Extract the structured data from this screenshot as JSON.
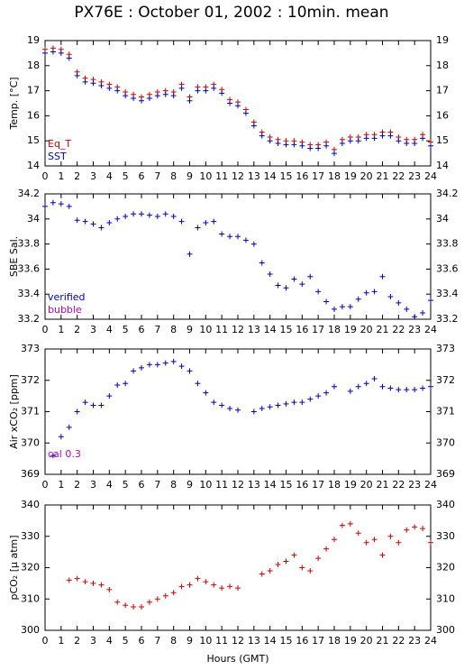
{
  "title": "PX76E : October 01, 2002 : 10min. mean",
  "chart_data": [
    {
      "type": "scatter",
      "ylabel": "Temp. [°C]",
      "xlim": [
        0,
        24
      ],
      "xticks": [
        0,
        1,
        2,
        3,
        4,
        5,
        6,
        7,
        8,
        9,
        10,
        11,
        12,
        13,
        14,
        15,
        16,
        17,
        18,
        19,
        20,
        21,
        22,
        23,
        24
      ],
      "ylim": [
        14,
        19
      ],
      "yticks": [
        14,
        15,
        16,
        17,
        18,
        19
      ],
      "x": [
        0,
        0.5,
        1,
        1.5,
        2,
        2.5,
        3,
        3.5,
        4,
        4.5,
        5,
        5.5,
        6,
        6.5,
        7,
        7.5,
        8,
        8.5,
        9,
        9.5,
        10,
        10.5,
        11,
        11.5,
        12,
        12.5,
        13,
        13.5,
        14,
        14.5,
        15,
        15.5,
        16,
        16.5,
        17,
        17.5,
        18,
        18.5,
        19,
        19.5,
        20,
        20.5,
        21,
        21.5,
        22,
        22.5,
        23,
        23.5,
        24
      ],
      "series": [
        {
          "name": "Eq_T",
          "color": "#d00000",
          "values": [
            18.65,
            18.7,
            18.65,
            18.45,
            17.75,
            17.5,
            17.45,
            17.35,
            17.25,
            17.15,
            16.95,
            16.85,
            16.75,
            16.85,
            16.95,
            17.0,
            16.95,
            17.25,
            16.75,
            17.15,
            17.15,
            17.25,
            17.05,
            16.65,
            16.55,
            16.25,
            15.75,
            15.35,
            15.15,
            15.05,
            15.0,
            15.0,
            14.95,
            14.85,
            14.85,
            14.95,
            14.65,
            15.05,
            15.15,
            15.15,
            15.25,
            15.25,
            15.35,
            15.35,
            15.15,
            15.05,
            15.05,
            15.25,
            14.95
          ]
        },
        {
          "name": "SST",
          "color": "#0000c0",
          "values": [
            18.5,
            18.55,
            18.5,
            18.3,
            17.6,
            17.35,
            17.3,
            17.2,
            17.1,
            17.0,
            16.8,
            16.7,
            16.6,
            16.7,
            16.8,
            16.85,
            16.8,
            17.1,
            16.6,
            17.0,
            17.0,
            17.1,
            16.9,
            16.5,
            16.4,
            16.1,
            15.6,
            15.2,
            15.0,
            14.9,
            14.85,
            14.85,
            14.8,
            14.7,
            14.7,
            14.8,
            14.5,
            14.9,
            15.0,
            15.0,
            15.1,
            15.1,
            15.2,
            15.2,
            15.0,
            14.9,
            14.9,
            15.1,
            14.8
          ]
        }
      ]
    },
    {
      "type": "scatter",
      "ylabel": "SBE Sal.",
      "xlim": [
        0,
        24
      ],
      "xticks": [
        0,
        1,
        2,
        3,
        4,
        5,
        6,
        7,
        8,
        9,
        10,
        11,
        12,
        13,
        14,
        15,
        16,
        17,
        18,
        19,
        20,
        21,
        22,
        23,
        24
      ],
      "ylim": [
        33.2,
        34.2
      ],
      "yticks": [
        33.2,
        33.4,
        33.6,
        33.8,
        34,
        34.2
      ],
      "x": [
        0,
        0.5,
        1,
        1.5,
        2,
        2.5,
        3,
        3.5,
        4,
        4.5,
        5,
        5.5,
        6,
        6.5,
        7,
        7.5,
        8,
        8.5,
        9,
        9.5,
        10,
        10.5,
        11,
        11.5,
        12,
        12.5,
        13,
        13.5,
        14,
        14.5,
        15,
        15.5,
        16,
        16.5,
        17,
        17.5,
        18,
        18.5,
        19,
        19.5,
        20,
        20.5,
        21,
        21.5,
        22,
        22.5,
        23,
        23.5,
        24
      ],
      "series": [
        {
          "name": "verified",
          "color": "#0000c0",
          "values": [
            34.1,
            34.13,
            34.12,
            34.1,
            33.99,
            33.98,
            33.96,
            33.93,
            33.97,
            34.0,
            34.02,
            34.04,
            34.04,
            34.03,
            34.02,
            34.04,
            34.02,
            33.98,
            33.72,
            33.93,
            33.97,
            33.98,
            33.88,
            33.86,
            33.86,
            33.83,
            33.8,
            33.65,
            33.56,
            33.47,
            33.45,
            33.52,
            33.48,
            33.54,
            33.42,
            33.34,
            33.28,
            33.3,
            33.3,
            33.36,
            33.41,
            33.42,
            33.54,
            33.38,
            33.33,
            33.28,
            33.22,
            33.25,
            33.35
          ]
        }
      ],
      "legend_extra": [
        {
          "text": "bubble",
          "color": "#c000c0"
        }
      ]
    },
    {
      "type": "scatter",
      "ylabel": "Air xCO₂ [ppm]",
      "annotation": "cal 0.3",
      "annotation_color": "#c000c0",
      "xlim": [
        0,
        24
      ],
      "xticks": [
        0,
        1,
        2,
        3,
        4,
        5,
        6,
        7,
        8,
        9,
        10,
        11,
        12,
        13,
        14,
        15,
        16,
        17,
        18,
        19,
        20,
        21,
        22,
        23,
        24
      ],
      "ylim": [
        369,
        373
      ],
      "yticks": [
        369,
        370,
        371,
        372,
        373
      ],
      "x": [
        0,
        0.5,
        1,
        1.5,
        2,
        2.5,
        3,
        3.5,
        4,
        4.5,
        5,
        5.5,
        6,
        6.5,
        7,
        7.5,
        8,
        8.5,
        9,
        9.5,
        10,
        10.5,
        11,
        11.5,
        12,
        12.5,
        13,
        13.5,
        14,
        14.5,
        15,
        15.5,
        16,
        16.5,
        17,
        17.5,
        18,
        18.5,
        19,
        19.5,
        20,
        20.5,
        21,
        21.5,
        22,
        22.5,
        23,
        23.5,
        24
      ],
      "series": [
        {
          "color": "#0000c0",
          "values": [
            null,
            369.6,
            370.2,
            370.5,
            371.0,
            371.3,
            371.2,
            371.2,
            371.5,
            371.85,
            371.9,
            372.3,
            372.4,
            372.5,
            372.5,
            372.55,
            372.6,
            372.45,
            372.3,
            371.9,
            371.6,
            371.3,
            371.2,
            371.1,
            371.05,
            null,
            371.0,
            371.1,
            371.15,
            371.2,
            371.25,
            371.3,
            371.3,
            371.4,
            371.5,
            371.6,
            371.8,
            null,
            371.65,
            371.8,
            371.9,
            372.05,
            371.8,
            371.75,
            371.7,
            371.7,
            371.7,
            371.75,
            371.8
          ]
        }
      ]
    },
    {
      "type": "scatter",
      "ylabel": "pCO₂ [μ atm]",
      "xlabel": "Hours (GMT)",
      "xlim": [
        0,
        24
      ],
      "xticks": [
        0,
        1,
        2,
        3,
        4,
        5,
        6,
        7,
        8,
        9,
        10,
        11,
        12,
        13,
        14,
        15,
        16,
        17,
        18,
        19,
        20,
        21,
        22,
        23,
        24
      ],
      "ylim": [
        300,
        340
      ],
      "yticks": [
        300,
        310,
        320,
        330,
        340
      ],
      "x": [
        0,
        0.5,
        1,
        1.5,
        2,
        2.5,
        3,
        3.5,
        4,
        4.5,
        5,
        5.5,
        6,
        6.5,
        7,
        7.5,
        8,
        8.5,
        9,
        9.5,
        10,
        10.5,
        11,
        11.5,
        12,
        12.5,
        13,
        13.5,
        14,
        14.5,
        15,
        15.5,
        16,
        16.5,
        17,
        17.5,
        18,
        18.5,
        19,
        19.5,
        20,
        20.5,
        21,
        21.5,
        22,
        22.5,
        23,
        23.5,
        24
      ],
      "series": [
        {
          "color": "#d00000",
          "values": [
            null,
            null,
            null,
            316,
            316.5,
            315.5,
            315,
            314.5,
            313,
            309,
            308,
            307.5,
            307.5,
            309,
            310,
            311,
            312,
            314,
            314.5,
            316.5,
            315.5,
            314.5,
            313.5,
            314,
            313.5,
            null,
            null,
            318,
            319,
            321,
            322,
            324,
            320,
            319,
            323,
            326,
            329,
            333.5,
            334,
            331,
            328,
            329,
            324,
            330,
            328,
            332,
            333,
            332.5,
            328
          ]
        }
      ]
    }
  ]
}
